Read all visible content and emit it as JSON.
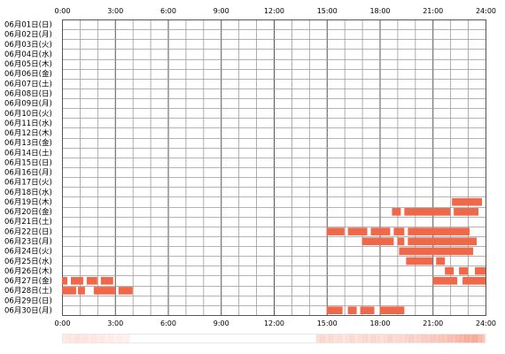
{
  "chart_data": {
    "type": "heatmap",
    "title": "",
    "xlabel": "",
    "ylabel": "",
    "x_ticks": [
      "0:00",
      "3:00",
      "6:00",
      "9:00",
      "12:00",
      "15:00",
      "18:00",
      "21:00",
      "24:00"
    ],
    "xlim_hours": [
      0,
      24
    ],
    "grid": true,
    "cell_color": "#f0684a",
    "summary_color": "#f0684a",
    "rows": [
      {
        "label": "06月01日(日)",
        "segments": []
      },
      {
        "label": "06月02日(月)",
        "segments": []
      },
      {
        "label": "06月03日(火)",
        "segments": []
      },
      {
        "label": "06月04日(水)",
        "segments": []
      },
      {
        "label": "06月05日(木)",
        "segments": []
      },
      {
        "label": "06月06日(金)",
        "segments": []
      },
      {
        "label": "06月07日(土)",
        "segments": []
      },
      {
        "label": "06月08日(日)",
        "segments": []
      },
      {
        "label": "06月09日(月)",
        "segments": []
      },
      {
        "label": "06月10日(火)",
        "segments": []
      },
      {
        "label": "06月11日(水)",
        "segments": []
      },
      {
        "label": "06月12日(木)",
        "segments": []
      },
      {
        "label": "06月13日(金)",
        "segments": []
      },
      {
        "label": "06月14日(土)",
        "segments": []
      },
      {
        "label": "06月15日(日)",
        "segments": []
      },
      {
        "label": "06月16日(月)",
        "segments": []
      },
      {
        "label": "06月17日(火)",
        "segments": []
      },
      {
        "label": "06月18日(水)",
        "segments": []
      },
      {
        "label": "06月19日(木)",
        "segments": [
          [
            22.1,
            23.8
          ]
        ]
      },
      {
        "label": "06月20日(金)",
        "segments": [
          [
            18.7,
            19.2
          ],
          [
            19.4,
            22.0
          ],
          [
            22.2,
            23.6
          ]
        ]
      },
      {
        "label": "06月21日(土)",
        "segments": []
      },
      {
        "label": "06月22日(日)",
        "segments": [
          [
            15.0,
            16.0
          ],
          [
            16.2,
            17.3
          ],
          [
            17.5,
            18.6
          ],
          [
            18.8,
            19.4
          ],
          [
            19.6,
            23.1
          ]
        ]
      },
      {
        "label": "06月23日(月)",
        "segments": [
          [
            17.0,
            18.8
          ],
          [
            19.0,
            19.4
          ],
          [
            19.6,
            23.5
          ]
        ]
      },
      {
        "label": "06月24日(火)",
        "segments": [
          [
            19.1,
            23.3
          ]
        ]
      },
      {
        "label": "06月25日(水)",
        "segments": [
          [
            19.5,
            21.0
          ],
          [
            21.2,
            21.7
          ]
        ]
      },
      {
        "label": "06月26日(木)",
        "segments": [
          [
            21.7,
            22.2
          ],
          [
            22.5,
            23.0
          ],
          [
            23.4,
            24.0
          ]
        ]
      },
      {
        "label": "06月27日(金)",
        "segments": [
          [
            0.0,
            0.3
          ],
          [
            0.5,
            1.2
          ],
          [
            1.4,
            2.0
          ],
          [
            2.2,
            2.9
          ],
          [
            21.0,
            22.4
          ],
          [
            22.7,
            24.0
          ]
        ]
      },
      {
        "label": "06月28日(土)",
        "segments": [
          [
            0.0,
            0.8
          ],
          [
            0.9,
            1.3
          ],
          [
            1.8,
            3.0
          ],
          [
            3.2,
            4.0
          ]
        ]
      },
      {
        "label": "06月29日(日)",
        "segments": []
      },
      {
        "label": "06月30日(月)",
        "segments": [
          [
            15.0,
            15.9
          ],
          [
            16.2,
            16.7
          ],
          [
            16.9,
            17.7
          ],
          [
            18.0,
            19.4
          ]
        ]
      }
    ],
    "summary_bar": {
      "values": [
        0.12,
        0.16,
        0.14,
        0.18,
        0.15,
        0.17,
        0.13,
        0.16,
        0.12,
        0.14,
        0.1,
        0.12,
        0.09,
        0.11,
        0.08,
        0.1,
        0.0,
        0.0,
        0.0,
        0.0,
        0.0,
        0.0,
        0.0,
        0.0,
        0.0,
        0.0,
        0.0,
        0.0,
        0.0,
        0.0,
        0.0,
        0.0,
        0.0,
        0.0,
        0.0,
        0.0,
        0.0,
        0.0,
        0.0,
        0.0,
        0.0,
        0.0,
        0.0,
        0.0,
        0.0,
        0.0,
        0.0,
        0.0,
        0.0,
        0.0,
        0.0,
        0.0,
        0.0,
        0.0,
        0.0,
        0.0,
        0.0,
        0.0,
        0.0,
        0.0,
        0.22,
        0.26,
        0.2,
        0.24,
        0.18,
        0.22,
        0.17,
        0.2,
        0.24,
        0.19,
        0.22,
        0.26,
        0.21,
        0.25,
        0.23,
        0.2,
        0.24,
        0.28,
        0.22,
        0.26,
        0.24,
        0.27,
        0.3,
        0.26,
        0.29,
        0.32,
        0.3,
        0.35,
        0.33,
        0.38,
        0.36,
        0.42,
        0.4,
        0.46,
        0.48,
        0.52,
        0.5,
        0.55,
        0.45,
        0.4
      ]
    }
  }
}
